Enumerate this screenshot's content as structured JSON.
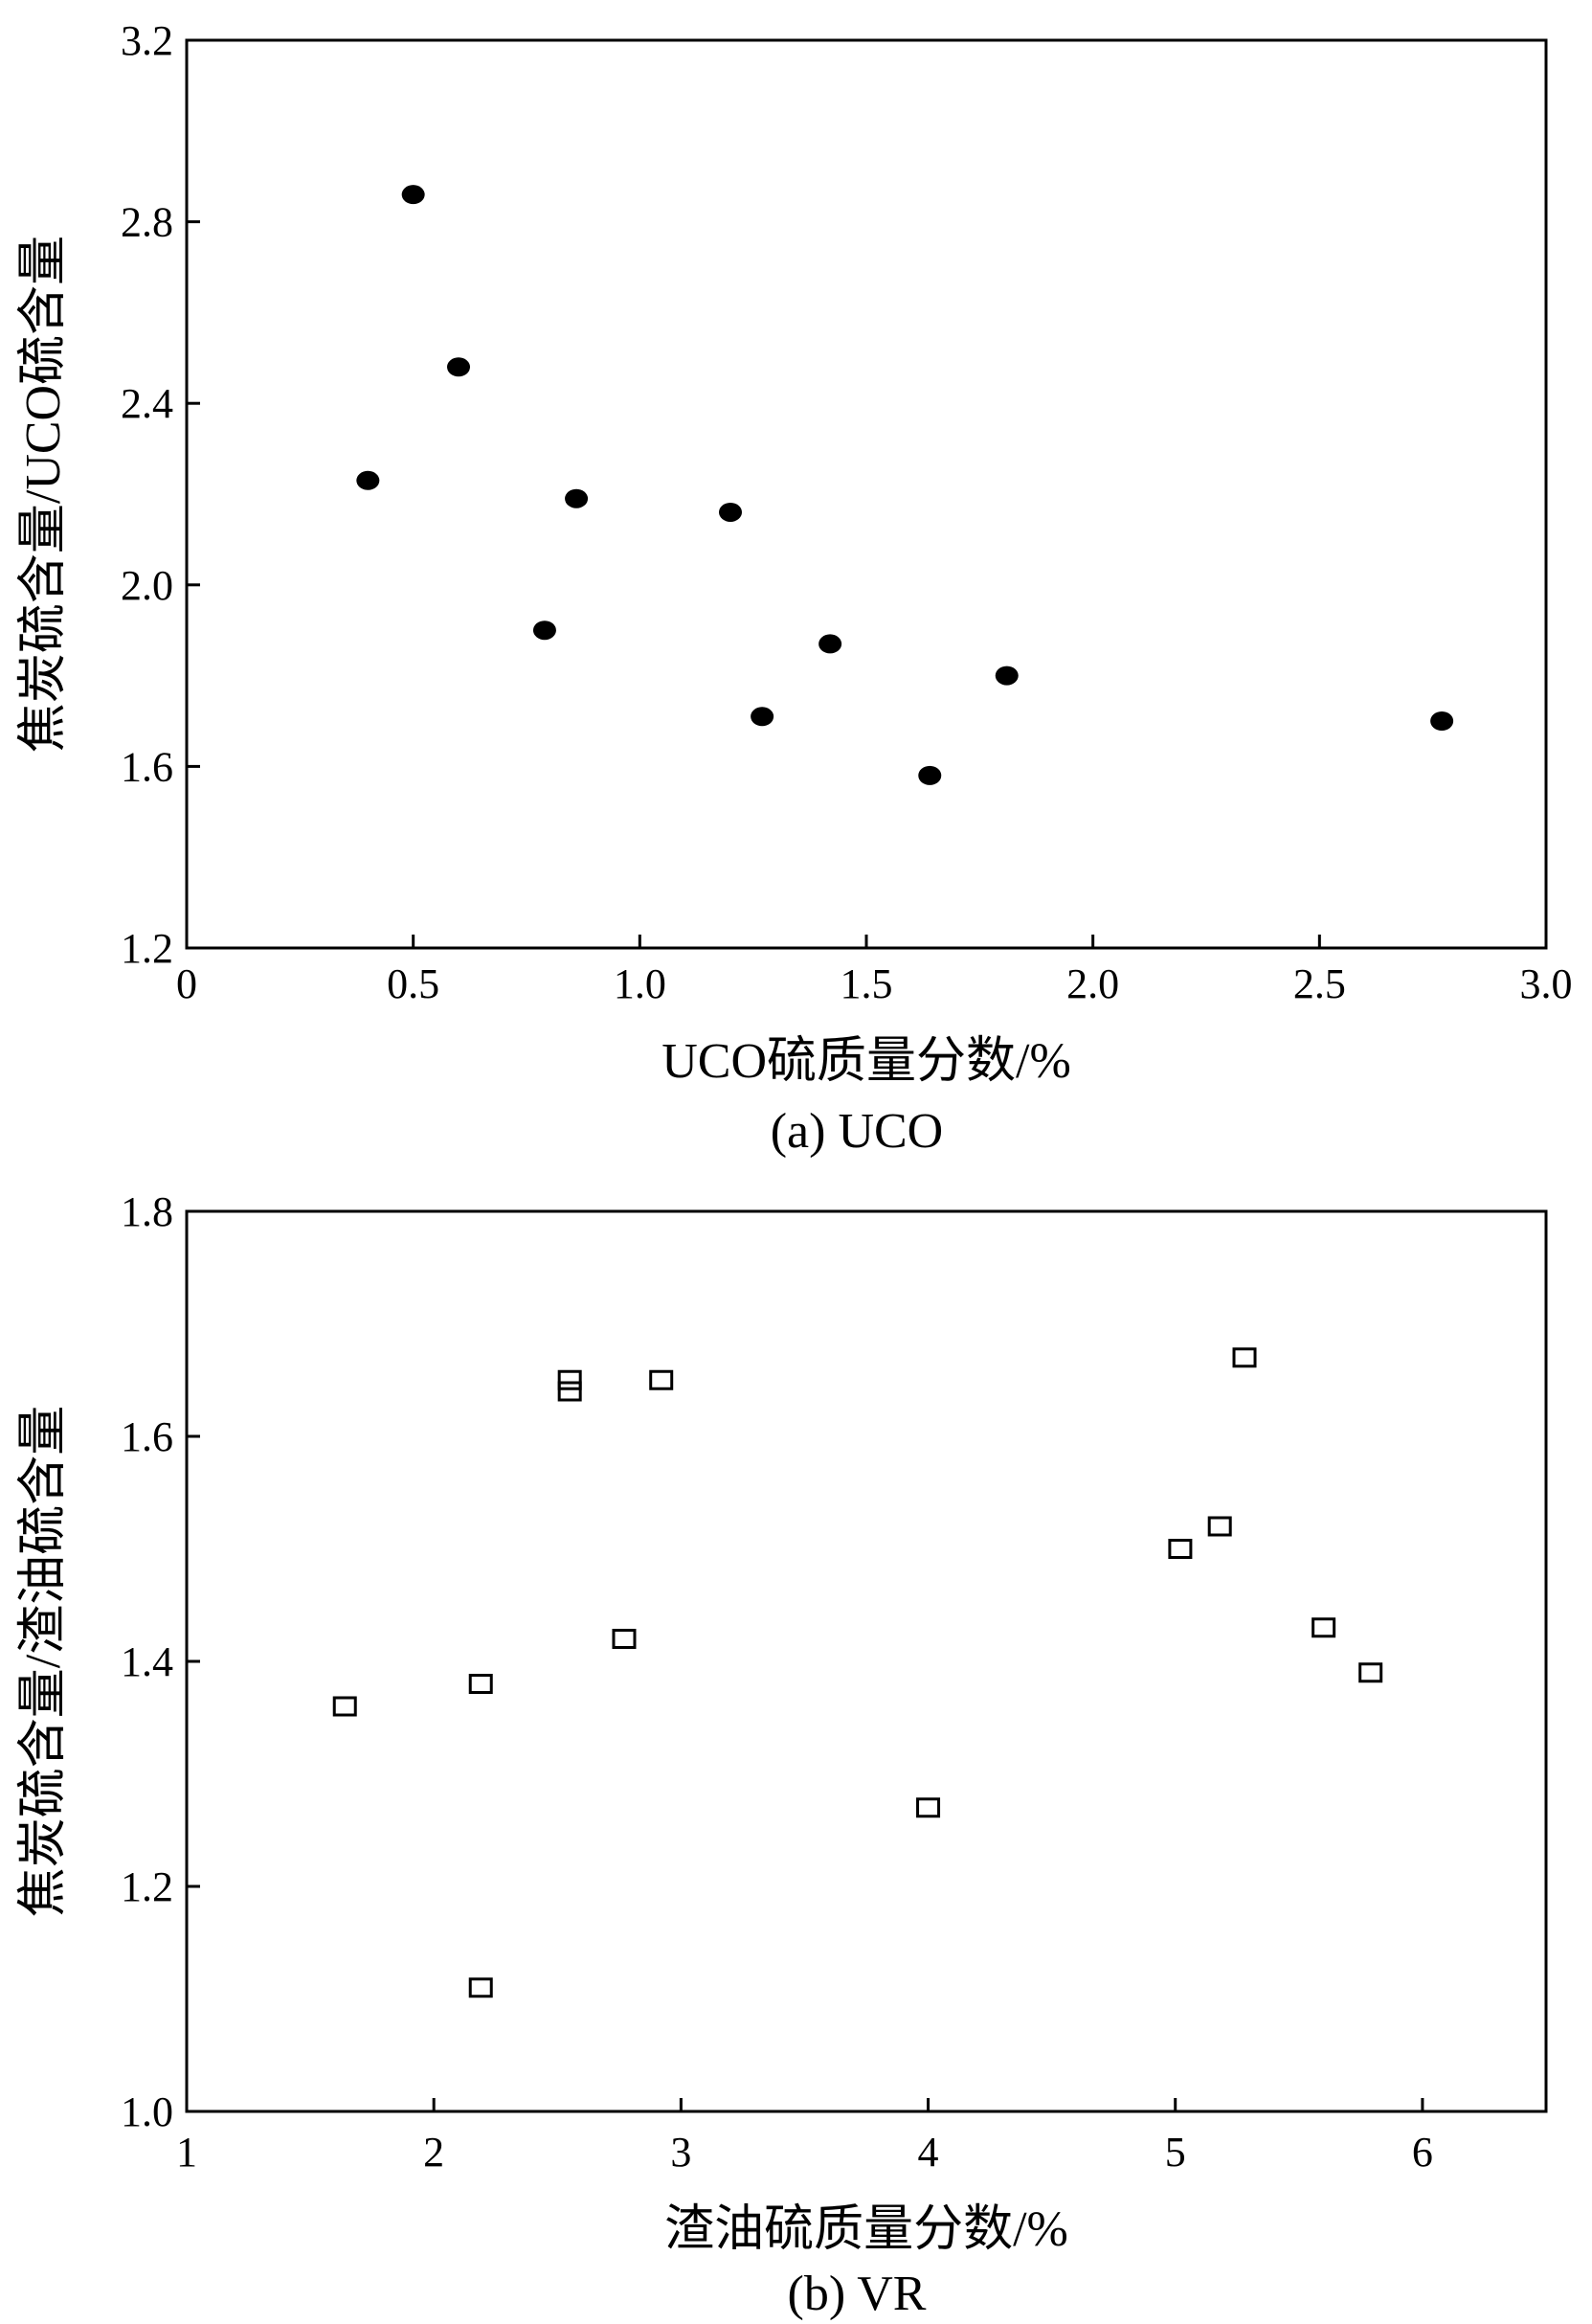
{
  "chart_data": [
    {
      "type": "scatter",
      "caption": "(a) UCO",
      "xlabel": "UCO硫质量分数/%",
      "ylabel": "焦炭硫含量/UCO硫含量",
      "xlim": [
        0,
        3.0
      ],
      "ylim": [
        1.2,
        3.2
      ],
      "xticks": [
        0,
        0.5,
        1.0,
        1.5,
        2.0,
        2.5,
        3.0
      ],
      "xtick_labels": [
        "0",
        "0.5",
        "1.0",
        "1.5",
        "2.0",
        "2.5",
        "3.0"
      ],
      "yticks": [
        1.2,
        1.6,
        2.0,
        2.4,
        2.8,
        3.2
      ],
      "ytick_labels": [
        "1.2",
        "1.6",
        "2.0",
        "2.4",
        "2.8",
        "3.2"
      ],
      "marker": "filled-circle",
      "marker_color": "#000000",
      "grid": false,
      "points": [
        {
          "x": 0.4,
          "y": 2.23
        },
        {
          "x": 0.5,
          "y": 2.86
        },
        {
          "x": 0.6,
          "y": 2.48
        },
        {
          "x": 0.79,
          "y": 1.9
        },
        {
          "x": 0.86,
          "y": 2.19
        },
        {
          "x": 1.2,
          "y": 2.16
        },
        {
          "x": 1.27,
          "y": 1.71
        },
        {
          "x": 1.42,
          "y": 1.87
        },
        {
          "x": 1.64,
          "y": 1.58
        },
        {
          "x": 1.81,
          "y": 1.8
        },
        {
          "x": 2.77,
          "y": 1.7
        }
      ]
    },
    {
      "type": "scatter",
      "caption": "(b) VR",
      "xlabel": "渣油硫质量分数/%",
      "ylabel": "焦炭硫含量/渣油硫含量",
      "xlim": [
        1,
        6.5
      ],
      "ylim": [
        1.0,
        1.8
      ],
      "xticks": [
        1,
        2,
        3,
        4,
        5,
        6
      ],
      "xtick_labels": [
        "1",
        "2",
        "3",
        "4",
        "5",
        "6"
      ],
      "yticks": [
        1.0,
        1.2,
        1.4,
        1.6,
        1.8
      ],
      "ytick_labels": [
        "1.0",
        "1.2",
        "1.4",
        "1.6",
        "1.8"
      ],
      "marker": "open-square",
      "marker_color": "#000000",
      "grid": false,
      "points": [
        {
          "x": 1.64,
          "y": 1.36
        },
        {
          "x": 2.19,
          "y": 1.11
        },
        {
          "x": 2.19,
          "y": 1.38
        },
        {
          "x": 2.55,
          "y": 1.65
        },
        {
          "x": 2.55,
          "y": 1.64
        },
        {
          "x": 2.77,
          "y": 1.42
        },
        {
          "x": 2.92,
          "y": 1.65
        },
        {
          "x": 4.0,
          "y": 1.27
        },
        {
          "x": 5.02,
          "y": 1.5
        },
        {
          "x": 5.18,
          "y": 1.52
        },
        {
          "x": 5.28,
          "y": 1.67
        },
        {
          "x": 5.6,
          "y": 1.43
        },
        {
          "x": 5.79,
          "y": 1.39
        }
      ]
    }
  ]
}
